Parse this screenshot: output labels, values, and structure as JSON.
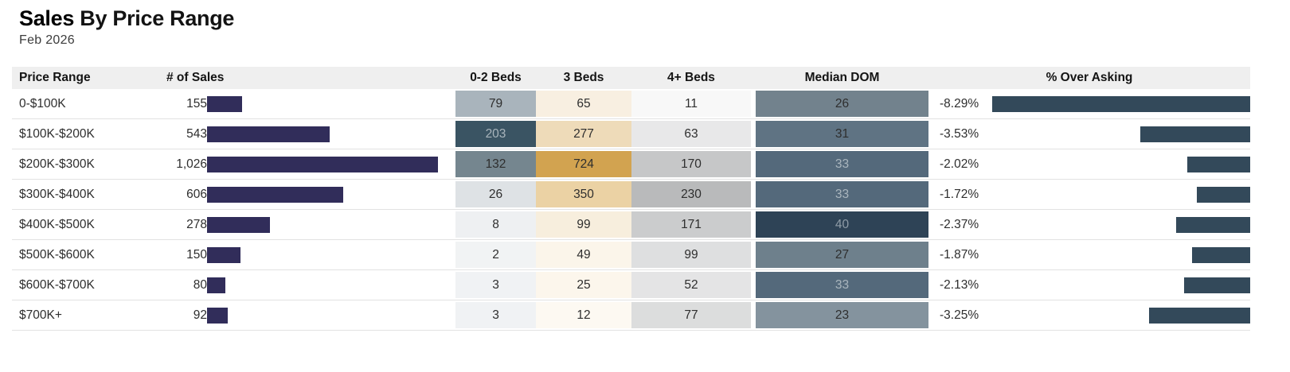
{
  "header": {
    "title_bold": "Sales",
    "title_rest": "By Price Range",
    "subtitle": "Feb 2026"
  },
  "table": {
    "columns": [
      "Price Range",
      "# of Sales",
      "0-2 Beds",
      "3 Beds",
      "4+ Beds",
      "Median DOM",
      "% Over Asking"
    ],
    "max_sales": 1026,
    "max_over_asking_magnitude": 8.29,
    "colors": {
      "sales_bar": "#312d5a",
      "over_asking_bar": "#33495a",
      "header_bg": "#efefef",
      "row_border": "#e2e2e2",
      "dark_text": "#2e2e2e",
      "light_text": "#abb7bf"
    },
    "rows": [
      {
        "price_range": "0-$100K",
        "sales_display": "155",
        "sales_value": 155,
        "beds_0_2": {
          "v": "79",
          "bg": "#a9b4bc",
          "fg": "#2e2e2e"
        },
        "beds_3": {
          "v": "65",
          "bg": "#f8efe1",
          "fg": "#2e2e2e"
        },
        "beds_4plus": {
          "v": "11",
          "bg": "#f8f8f8",
          "fg": "#2e2e2e"
        },
        "median_dom": {
          "v": "26",
          "bg": "#72828d",
          "fg": "#2e2e2e"
        },
        "over_asking_display": "-8.29%",
        "over_asking_magnitude": 8.29
      },
      {
        "price_range": "$100K-$200K",
        "sales_display": "543",
        "sales_value": 543,
        "beds_0_2": {
          "v": "203",
          "bg": "#3a5463",
          "fg": "#a9b5bc"
        },
        "beds_3": {
          "v": "277",
          "bg": "#eedbb9",
          "fg": "#2e2e2e"
        },
        "beds_4plus": {
          "v": "63",
          "bg": "#e8e8e9",
          "fg": "#2e2e2e"
        },
        "median_dom": {
          "v": "31",
          "bg": "#5f7383",
          "fg": "#2e2e2e"
        },
        "over_asking_display": "-3.53%",
        "over_asking_magnitude": 3.53
      },
      {
        "price_range": "$200K-$300K",
        "sales_display": "1,026",
        "sales_value": 1026,
        "beds_0_2": {
          "v": "132",
          "bg": "#75868f",
          "fg": "#2e2e2e"
        },
        "beds_3": {
          "v": "724",
          "bg": "#d2a350",
          "fg": "#2e2e2e"
        },
        "beds_4plus": {
          "v": "170",
          "bg": "#c6c7c8",
          "fg": "#2e2e2e"
        },
        "median_dom": {
          "v": "33",
          "bg": "#54697b",
          "fg": "#aab6be"
        },
        "over_asking_display": "-2.02%",
        "over_asking_magnitude": 2.02
      },
      {
        "price_range": "$300K-$400K",
        "sales_display": "606",
        "sales_value": 606,
        "beds_0_2": {
          "v": "26",
          "bg": "#dee2e5",
          "fg": "#2e2e2e"
        },
        "beds_3": {
          "v": "350",
          "bg": "#ebd2a4",
          "fg": "#2e2e2e"
        },
        "beds_4plus": {
          "v": "230",
          "bg": "#b9babb",
          "fg": "#2e2e2e"
        },
        "median_dom": {
          "v": "33",
          "bg": "#54697b",
          "fg": "#aab6be"
        },
        "over_asking_display": "-1.72%",
        "over_asking_magnitude": 1.72
      },
      {
        "price_range": "$400K-$500K",
        "sales_display": "278",
        "sales_value": 278,
        "beds_0_2": {
          "v": "8",
          "bg": "#eef0f2",
          "fg": "#2e2e2e"
        },
        "beds_3": {
          "v": "99",
          "bg": "#f7eedd",
          "fg": "#2e2e2e"
        },
        "beds_4plus": {
          "v": "171",
          "bg": "#cbcccd",
          "fg": "#2e2e2e"
        },
        "median_dom": {
          "v": "40",
          "bg": "#2e4356",
          "fg": "#8f9ca7"
        },
        "over_asking_display": "-2.37%",
        "over_asking_magnitude": 2.37
      },
      {
        "price_range": "$500K-$600K",
        "sales_display": "150",
        "sales_value": 150,
        "beds_0_2": {
          "v": "2",
          "bg": "#f1f3f4",
          "fg": "#2e2e2e"
        },
        "beds_3": {
          "v": "49",
          "bg": "#fbf5ea",
          "fg": "#2e2e2e"
        },
        "beds_4plus": {
          "v": "99",
          "bg": "#dedfe0",
          "fg": "#2e2e2e"
        },
        "median_dom": {
          "v": "27",
          "bg": "#6e808c",
          "fg": "#2e2e2e"
        },
        "over_asking_display": "-1.87%",
        "over_asking_magnitude": 1.87
      },
      {
        "price_range": "$600K-$700K",
        "sales_display": "80",
        "sales_value": 80,
        "beds_0_2": {
          "v": "3",
          "bg": "#f0f2f4",
          "fg": "#2e2e2e"
        },
        "beds_3": {
          "v": "25",
          "bg": "#fcf6ec",
          "fg": "#2e2e2e"
        },
        "beds_4plus": {
          "v": "52",
          "bg": "#e4e4e5",
          "fg": "#2e2e2e"
        },
        "median_dom": {
          "v": "33",
          "bg": "#54697b",
          "fg": "#aab6be"
        },
        "over_asking_display": "-2.13%",
        "over_asking_magnitude": 2.13
      },
      {
        "price_range": "$700K+",
        "sales_display": "92",
        "sales_value": 92,
        "beds_0_2": {
          "v": "3",
          "bg": "#f0f2f4",
          "fg": "#2e2e2e"
        },
        "beds_3": {
          "v": "12",
          "bg": "#fdf9f2",
          "fg": "#2e2e2e"
        },
        "beds_4plus": {
          "v": "77",
          "bg": "#dcdddd",
          "fg": "#2e2e2e"
        },
        "median_dom": {
          "v": "23",
          "bg": "#84939e",
          "fg": "#2e2e2e"
        },
        "over_asking_display": "-3.25%",
        "over_asking_magnitude": 3.25
      }
    ]
  },
  "chart_data": {
    "type": "table",
    "title": "Sales By Price Range",
    "subtitle": "Feb 2026",
    "columns": [
      "Price Range",
      "# of Sales",
      "0-2 Beds",
      "3 Beds",
      "4+ Beds",
      "Median DOM",
      "% Over Asking"
    ],
    "rows": [
      [
        "0-$100K",
        155,
        79,
        65,
        11,
        26,
        -8.29
      ],
      [
        "$100K-$200K",
        543,
        203,
        277,
        63,
        31,
        -3.53
      ],
      [
        "$200K-$300K",
        1026,
        132,
        724,
        170,
        33,
        -2.02
      ],
      [
        "$300K-$400K",
        606,
        26,
        350,
        230,
        33,
        -1.72
      ],
      [
        "$400K-$500K",
        278,
        8,
        99,
        171,
        40,
        -2.37
      ],
      [
        "$500K-$600K",
        150,
        2,
        49,
        99,
        27,
        -1.87
      ],
      [
        "$600K-$700K",
        80,
        3,
        25,
        52,
        33,
        -2.13
      ],
      [
        "$700K+",
        92,
        3,
        12,
        77,
        23,
        -3.25
      ]
    ],
    "notes": {
      "sales_bar_scale": "bar length proportional to # of Sales, max 1026",
      "over_asking_bar_scale": "right-anchored bar proportional to |% Over Asking|, max 8.29",
      "heatmaps": "0-2 Beds blue-gray scale, 3 Beds gold scale, 4+ Beds gray scale, Median DOM slate scale"
    }
  }
}
